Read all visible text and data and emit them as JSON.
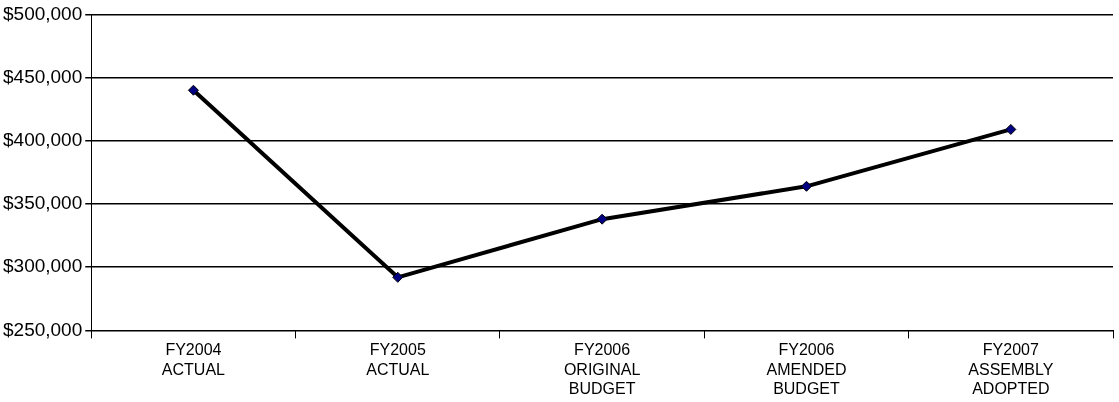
{
  "chart_data": {
    "type": "line",
    "categories": [
      "FY2004\nACTUAL",
      "FY2005\nACTUAL",
      "FY2006\nORIGINAL\nBUDGET",
      "FY2006\nAMENDED\nBUDGET",
      "FY2007\nASSEMBLY\nADOPTED"
    ],
    "series": [
      {
        "color": "#000000",
        "values": [
          440000,
          292000,
          338000,
          364000,
          409000
        ]
      }
    ],
    "ylim": [
      250000,
      500000
    ],
    "yticks": [
      {
        "value": 250000,
        "label": "$250,000"
      },
      {
        "value": 300000,
        "label": "$300,000"
      },
      {
        "value": 350000,
        "label": "$350,000"
      },
      {
        "value": 400000,
        "label": "$400,000"
      },
      {
        "value": 450000,
        "label": "$450,000"
      },
      {
        "value": 500000,
        "label": "$500,000"
      }
    ],
    "grid": "y",
    "legend": false,
    "marker": "diamond",
    "line_style": "solid"
  }
}
